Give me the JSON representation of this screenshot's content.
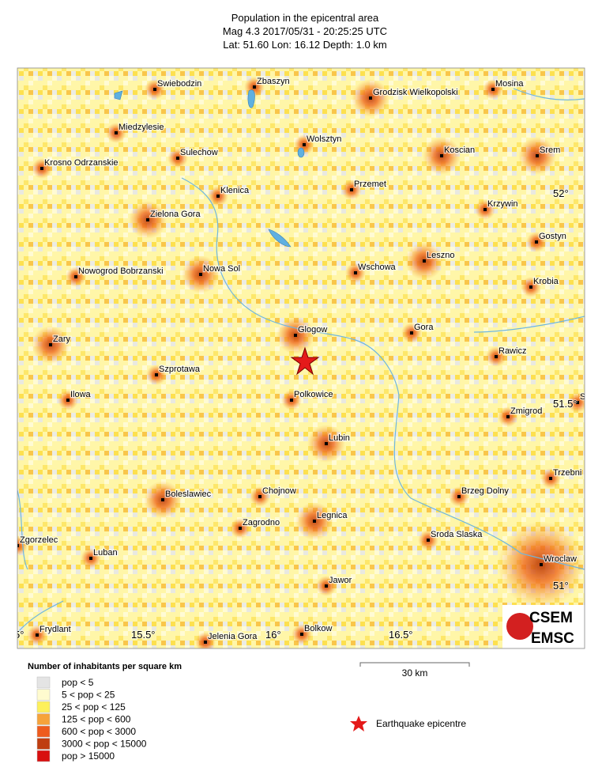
{
  "header": {
    "title": "Population in the epicentral area",
    "subtitle": "Mag 4.3  2017/05/31 - 20:25:25 UTC",
    "location": "Lat: 51.60   Lon:  16.12    Depth:  1.0 km"
  },
  "map": {
    "cities": [
      "Swiebodzin",
      "Zbaszyn",
      "Grodzisk Wielkopolski",
      "Mosina",
      "Miedzylesie",
      "Wolsztyn",
      "Koscian",
      "Srem",
      "Sulechow",
      "Krosno Odrzanskie",
      "Klenica",
      "Przemet",
      "Krzywin",
      "Zielona Gora",
      "Gostyn",
      "Leszno",
      "Wschowa",
      "Nowogrod Bobrzanski",
      "Nowa Sol",
      "Krobia",
      "Glogow",
      "Gora",
      "Zary",
      "Rawicz",
      "Szprotawa",
      "Polkowice",
      "Ilowa",
      "S",
      "Zmigrod",
      "Lubin",
      "Trzebni",
      "Chojnow",
      "Boleslawiec",
      "Brzeg Dolny",
      "Zagrodno",
      "Legnica",
      "Zgorzelec",
      "Sroda Slaska",
      "Luban",
      "Wroclaw",
      "Jawor",
      "Frydlant",
      "Jelenia Gora",
      "Bolkow"
    ],
    "graticule": [
      "52°",
      "51.5°",
      "51°",
      "5°",
      "15.5°",
      "16°",
      "16.5°"
    ]
  },
  "logo": {
    "top": "CSEM",
    "bottom": "EMSC"
  },
  "scale": {
    "label": "30 km"
  },
  "legend": {
    "title": "Number of inhabitants per square km",
    "items": [
      {
        "label": "pop < 5",
        "color": "#e4e4e4"
      },
      {
        "label": "5 < pop < 25",
        "color": "#fffbcf"
      },
      {
        "label": "25 < pop < 125",
        "color": "#fdf05b"
      },
      {
        "label": "125 < pop < 600",
        "color": "#f6a33b"
      },
      {
        "label": "600 < pop < 3000",
        "color": "#ee5b1d"
      },
      {
        "label": "3000 < pop < 15000",
        "color": "#bf3e10"
      },
      {
        "label": "pop > 15000",
        "color": "#d80f0f"
      }
    ]
  },
  "epicentre": {
    "label": "Earthquake epicentre"
  }
}
